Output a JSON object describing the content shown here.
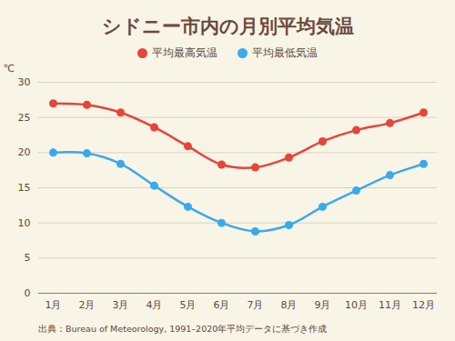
{
  "chart_data": {
    "type": "line",
    "title": "シドニー市内の月別平均気温",
    "y_label": "℃",
    "caption": "出典：Bureau of Meteorology, 1991–2020年平均データに基づき作成",
    "categories": [
      "1月",
      "2月",
      "3月",
      "4月",
      "5月",
      "6月",
      "7月",
      "8月",
      "9月",
      "10月",
      "11月",
      "12月"
    ],
    "series": [
      {
        "name": "平均最高気温",
        "color": "#e5453b",
        "marker": "circle",
        "line_style": "solid",
        "values": [
          27.0,
          26.8,
          25.7,
          23.6,
          20.9,
          18.3,
          17.9,
          19.3,
          21.6,
          23.2,
          24.2,
          25.7
        ]
      },
      {
        "name": "平均最低気温",
        "color": "#3aa9ee",
        "marker": "circle",
        "line_style": "solid",
        "values": [
          20.0,
          19.9,
          18.4,
          15.3,
          12.3,
          10.0,
          8.8,
          9.7,
          12.3,
          14.6,
          16.8,
          18.4
        ]
      }
    ],
    "ylim": [
      0,
      30
    ],
    "yticks": [
      0,
      5,
      10,
      15,
      20,
      25,
      30
    ],
    "grid": true,
    "legend": "top"
  }
}
